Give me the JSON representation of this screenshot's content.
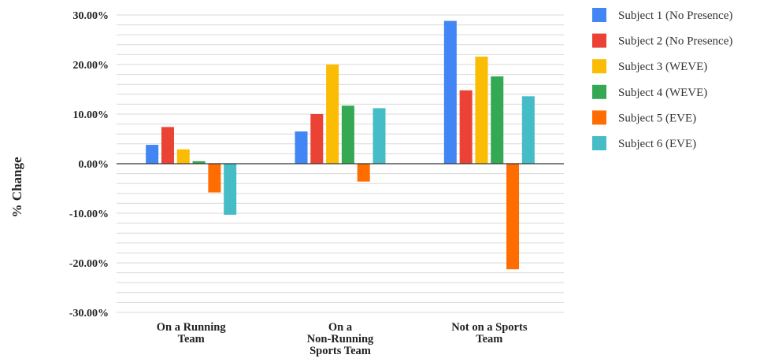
{
  "chart_data": {
    "type": "bar",
    "title": "",
    "xlabel": "",
    "ylabel": "% Change",
    "ylim": [
      -30,
      30
    ],
    "yticks": [
      {
        "value": 30,
        "label": "30.00%"
      },
      {
        "value": 20,
        "label": "20.00%"
      },
      {
        "value": 10,
        "label": "10.00%"
      },
      {
        "value": 0,
        "label": "0.00%"
      },
      {
        "value": -10,
        "label": "-10.00%"
      },
      {
        "value": -20,
        "label": "-20.00%"
      },
      {
        "value": -30,
        "label": "-30.00%"
      }
    ],
    "grid": true,
    "legend_position": "right",
    "categories": [
      [
        "On a Running",
        "Team"
      ],
      [
        "On a",
        "Non-Running",
        "Sports Team"
      ],
      [
        "Not on a Sports",
        "Team"
      ]
    ],
    "series": [
      {
        "name": "Subject 1 (No Presence)",
        "color": "#4285F4",
        "values": [
          3.8,
          6.5,
          28.8
        ]
      },
      {
        "name": "Subject 2 (No Presence)",
        "color": "#EA4335",
        "values": [
          7.4,
          10.0,
          14.8
        ]
      },
      {
        "name": "Subject 3 (WEVE)",
        "color": "#FBBC04",
        "values": [
          2.9,
          20.0,
          21.6
        ]
      },
      {
        "name": "Subject 4 (WEVE)",
        "color": "#34A853",
        "values": [
          0.5,
          11.7,
          17.6
        ]
      },
      {
        "name": "Subject 5 (EVE)",
        "color": "#FF6D01",
        "values": [
          -5.8,
          -3.6,
          -21.3
        ]
      },
      {
        "name": "Subject 6 (EVE)",
        "color": "#46BDC6",
        "values": [
          -10.3,
          11.2,
          13.6
        ]
      }
    ]
  }
}
